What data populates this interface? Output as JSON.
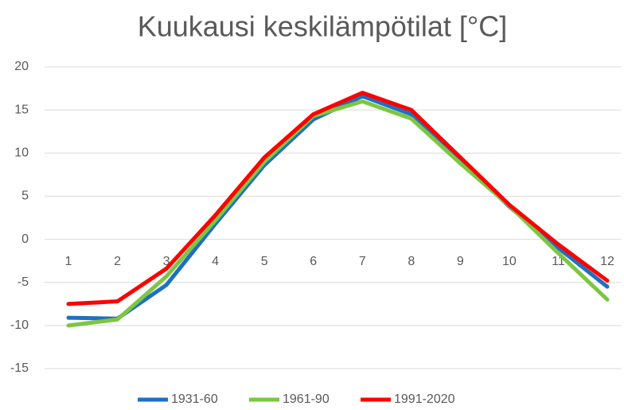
{
  "chart_data": {
    "type": "line",
    "title": "Kuukausi keskilämpötilat [°C]",
    "categories": [
      "1",
      "2",
      "3",
      "4",
      "5",
      "6",
      "7",
      "8",
      "9",
      "10",
      "11",
      "12"
    ],
    "series": [
      {
        "name": "1931-60",
        "color": "#1f6fc2",
        "values": [
          -9.1,
          -9.2,
          -5.3,
          1.8,
          8.6,
          13.9,
          16.6,
          14.5,
          9.2,
          3.8,
          -1.0,
          -5.5
        ]
      },
      {
        "name": "1961-90",
        "color": "#7dc642",
        "values": [
          -10.0,
          -9.3,
          -4.3,
          2.2,
          9.0,
          14.3,
          16.0,
          14.0,
          8.8,
          3.9,
          -1.6,
          -7.0
        ]
      },
      {
        "name": "1991-2020",
        "color": "#ff0000",
        "values": [
          -7.5,
          -7.2,
          -3.4,
          2.8,
          9.5,
          14.5,
          17.0,
          15.0,
          9.5,
          4.0,
          -0.6,
          -4.8
        ]
      }
    ],
    "ylim": [
      -15,
      20
    ],
    "yticks": [
      -15,
      -10,
      -5,
      0,
      5,
      10,
      15,
      20
    ],
    "grid": true,
    "legend": "bottom"
  }
}
